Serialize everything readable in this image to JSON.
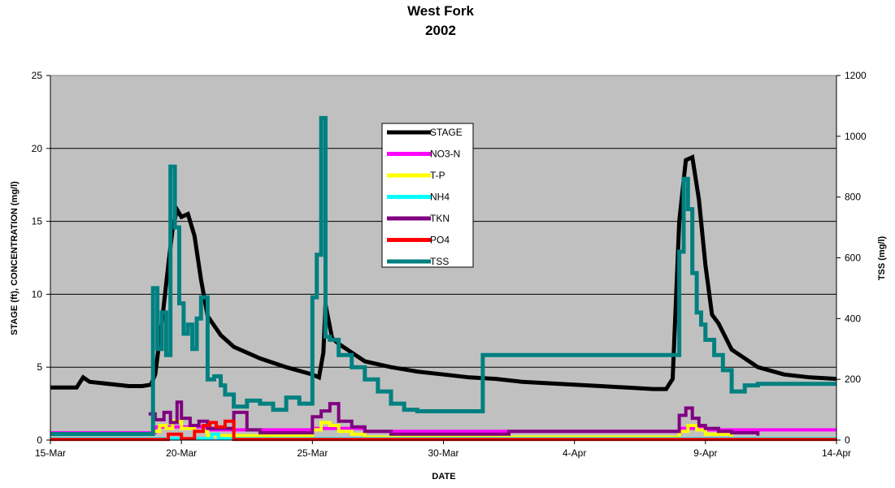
{
  "chart_data": {
    "type": "line",
    "title": "West Fork",
    "subtitle": "2002",
    "xlabel": "DATE",
    "ylabel": "STAGE (ft), CONCENTRATION (mg/l)",
    "y2label": "TSS (mg/l)",
    "xlim": [
      "2002-03-15",
      "2002-04-14"
    ],
    "ylim": [
      0,
      25
    ],
    "y2lim": [
      0,
      1200
    ],
    "x_ticks": [
      "15-Mar",
      "20-Mar",
      "25-Mar",
      "30-Mar",
      "4-Apr",
      "9-Apr",
      "14-Apr"
    ],
    "y_ticks": [
      0,
      5,
      10,
      15,
      20,
      25
    ],
    "y2_ticks": [
      0,
      200,
      400,
      600,
      800,
      1000,
      1200
    ],
    "grid": true,
    "legend_position": "top-center",
    "plot_background": "#c0c0c0",
    "series": [
      {
        "name": "STAGE",
        "color": "#000000",
        "axis": "left",
        "step": false,
        "width": 5,
        "x": [
          "2002-03-15T00:00",
          "2002-03-16T00:00",
          "2002-03-16T06:00",
          "2002-03-16T12:00",
          "2002-03-17T00:00",
          "2002-03-18T00:00",
          "2002-03-18T12:00",
          "2002-03-18T20:00",
          "2002-03-19T00:00",
          "2002-03-19T06:00",
          "2002-03-19T12:00",
          "2002-03-19T16:00",
          "2002-03-19T20:00",
          "2002-03-20T00:00",
          "2002-03-20T06:00",
          "2002-03-20T12:00",
          "2002-03-20T18:00",
          "2002-03-21T00:00",
          "2002-03-21T12:00",
          "2002-03-22T00:00",
          "2002-03-23T00:00",
          "2002-03-24T00:00",
          "2002-03-25T00:00",
          "2002-03-25T06:00",
          "2002-03-25T10:00",
          "2002-03-25T12:00",
          "2002-03-25T18:00",
          "2002-03-26T00:00",
          "2002-03-26T12:00",
          "2002-03-27T00:00",
          "2002-03-28T00:00",
          "2002-03-29T00:00",
          "2002-03-30T00:00",
          "2002-03-31T00:00",
          "2002-04-01T00:00",
          "2002-04-02T00:00",
          "2002-04-03T00:00",
          "2002-04-04T00:00",
          "2002-04-05T00:00",
          "2002-04-06T00:00",
          "2002-04-07T00:00",
          "2002-04-07T12:00",
          "2002-04-07T18:00",
          "2002-04-08T00:00",
          "2002-04-08T06:00",
          "2002-04-08T12:00",
          "2002-04-08T18:00",
          "2002-04-09T00:00",
          "2002-04-09T06:00",
          "2002-04-09T12:00",
          "2002-04-10T00:00",
          "2002-04-11T00:00",
          "2002-04-12T00:00",
          "2002-04-13T00:00",
          "2002-04-14T00:00"
        ],
        "y": [
          3.6,
          3.6,
          4.3,
          4.0,
          3.9,
          3.7,
          3.7,
          3.8,
          4.5,
          8.0,
          12.0,
          14.5,
          15.8,
          15.3,
          15.5,
          14.0,
          11.0,
          8.5,
          7.2,
          6.4,
          5.6,
          5.0,
          4.5,
          4.3,
          6.0,
          9.3,
          7.0,
          6.6,
          6.0,
          5.4,
          5.0,
          4.7,
          4.5,
          4.3,
          4.2,
          4.0,
          3.9,
          3.8,
          3.7,
          3.6,
          3.5,
          3.5,
          4.2,
          15.0,
          19.2,
          19.4,
          16.5,
          12.0,
          8.6,
          8.0,
          6.2,
          5.0,
          4.5,
          4.3,
          4.2
        ]
      },
      {
        "name": "NO3-N",
        "color": "#ff00ff",
        "axis": "left",
        "step": true,
        "width": 4,
        "x": [
          "2002-03-15T00:00",
          "2002-03-18T18:00",
          "2002-03-19T00:00",
          "2002-03-21T00:00",
          "2002-03-25T00:00",
          "2002-03-27T00:00",
          "2002-04-08T00:00",
          "2002-04-09T00:00",
          "2002-04-14T00:00"
        ],
        "y": [
          0.5,
          0.5,
          0.9,
          0.7,
          0.8,
          0.6,
          0.8,
          0.7,
          0.7
        ]
      },
      {
        "name": "T-P",
        "color": "#ffff00",
        "axis": "left",
        "step": true,
        "width": 4,
        "x": [
          "2002-03-18T20:00",
          "2002-03-19T04:00",
          "2002-03-19T10:00",
          "2002-03-19T16:00",
          "2002-03-20T00:00",
          "2002-03-20T12:00",
          "2002-03-21T00:00",
          "2002-03-25T00:00",
          "2002-03-25T08:00",
          "2002-03-25T16:00",
          "2002-03-26T00:00",
          "2002-03-26T12:00",
          "2002-03-27T00:00",
          "2002-04-08T00:00",
          "2002-04-08T08:00",
          "2002-04-08T16:00",
          "2002-04-09T00:00",
          "2002-04-10T00:00"
        ],
        "y": [
          0.6,
          1.0,
          0.8,
          1.3,
          0.8,
          0.6,
          0.3,
          0.7,
          1.2,
          1.0,
          0.6,
          0.4,
          0.2,
          0.6,
          1.0,
          0.7,
          0.4,
          0.2
        ]
      },
      {
        "name": "NH4",
        "color": "#00ffff",
        "axis": "left",
        "step": true,
        "width": 4,
        "x": [
          "2002-03-15T00:00",
          "2002-03-18T18:00",
          "2002-03-21T04:00",
          "2002-03-21T10:00",
          "2002-03-21T16:00",
          "2002-04-14T00:00"
        ],
        "y": [
          0.1,
          0.1,
          0.4,
          0.1,
          0.1,
          0.1
        ]
      },
      {
        "name": "TKN",
        "color": "#800080",
        "axis": "left",
        "step": true,
        "width": 4,
        "x": [
          "2002-03-18T18:00",
          "2002-03-19T00:00",
          "2002-03-19T08:00",
          "2002-03-19T14:00",
          "2002-03-19T20:00",
          "2002-03-20T00:00",
          "2002-03-20T08:00",
          "2002-03-20T16:00",
          "2002-03-21T00:00",
          "2002-03-22T00:00",
          "2002-03-22T12:00",
          "2002-03-23T00:00",
          "2002-03-25T00:00",
          "2002-03-25T08:00",
          "2002-03-25T16:00",
          "2002-03-26T00:00",
          "2002-03-26T12:00",
          "2002-03-27T00:00",
          "2002-03-28T00:00",
          "2002-04-01T12:00",
          "2002-04-08T00:00",
          "2002-04-08T06:00",
          "2002-04-08T12:00",
          "2002-04-08T18:00",
          "2002-04-09T00:00",
          "2002-04-09T12:00",
          "2002-04-10T00:00",
          "2002-04-11T00:00"
        ],
        "y": [
          1.8,
          1.4,
          1.9,
          1.2,
          2.6,
          1.5,
          1.0,
          1.3,
          0.8,
          1.9,
          0.7,
          0.5,
          1.6,
          2.0,
          2.5,
          1.3,
          0.9,
          0.6,
          0.4,
          0.6,
          1.7,
          2.2,
          1.5,
          1.0,
          0.8,
          0.6,
          0.5,
          0.3
        ]
      },
      {
        "name": "PO4",
        "color": "#ff0000",
        "axis": "left",
        "step": true,
        "width": 4,
        "x": [
          "2002-03-15T00:00",
          "2002-03-19T04:00",
          "2002-03-19T12:00",
          "2002-03-20T00:00",
          "2002-03-20T12:00",
          "2002-03-20T20:00",
          "2002-03-21T02:00",
          "2002-03-21T08:00",
          "2002-03-21T16:00",
          "2002-03-22T00:00",
          "2002-04-14T00:00"
        ],
        "y": [
          0.05,
          0.05,
          0.4,
          0.1,
          0.6,
          1.0,
          1.2,
          0.9,
          1.3,
          0.05,
          0.05
        ]
      },
      {
        "name": "TSS",
        "color": "#008080",
        "axis": "right",
        "step": true,
        "width": 5,
        "x": [
          "2002-03-15T00:00",
          "2002-03-18T18:00",
          "2002-03-18T22:00",
          "2002-03-19T02:00",
          "2002-03-19T06:00",
          "2002-03-19T10:00",
          "2002-03-19T14:00",
          "2002-03-19T18:00",
          "2002-03-19T22:00",
          "2002-03-20T02:00",
          "2002-03-20T06:00",
          "2002-03-20T10:00",
          "2002-03-20T14:00",
          "2002-03-20T18:00",
          "2002-03-21T00:00",
          "2002-03-21T06:00",
          "2002-03-21T12:00",
          "2002-03-21T16:00",
          "2002-03-22T00:00",
          "2002-03-22T12:00",
          "2002-03-23T00:00",
          "2002-03-23T12:00",
          "2002-03-24T00:00",
          "2002-03-24T12:00",
          "2002-03-25T00:00",
          "2002-03-25T04:00",
          "2002-03-25T08:00",
          "2002-03-25T12:00",
          "2002-03-25T16:00",
          "2002-03-26T00:00",
          "2002-03-26T12:00",
          "2002-03-27T00:00",
          "2002-03-27T12:00",
          "2002-03-28T00:00",
          "2002-03-28T12:00",
          "2002-03-29T00:00",
          "2002-03-31T12:00",
          "2002-04-07T18:00",
          "2002-04-08T00:00",
          "2002-04-08T04:00",
          "2002-04-08T08:00",
          "2002-04-08T12:00",
          "2002-04-08T16:00",
          "2002-04-08T20:00",
          "2002-04-09T00:00",
          "2002-04-09T08:00",
          "2002-04-09T16:00",
          "2002-04-10T00:00",
          "2002-04-10T12:00",
          "2002-04-11T00:00",
          "2002-04-14T00:00"
        ],
        "y": [
          20,
          20,
          500,
          300,
          420,
          280,
          900,
          700,
          450,
          350,
          380,
          300,
          400,
          470,
          200,
          210,
          180,
          150,
          110,
          130,
          120,
          100,
          140,
          120,
          470,
          610,
          1060,
          340,
          330,
          280,
          240,
          200,
          160,
          120,
          100,
          95,
          280,
          280,
          620,
          860,
          760,
          550,
          420,
          380,
          330,
          280,
          230,
          160,
          180,
          185,
          185
        ]
      }
    ]
  }
}
